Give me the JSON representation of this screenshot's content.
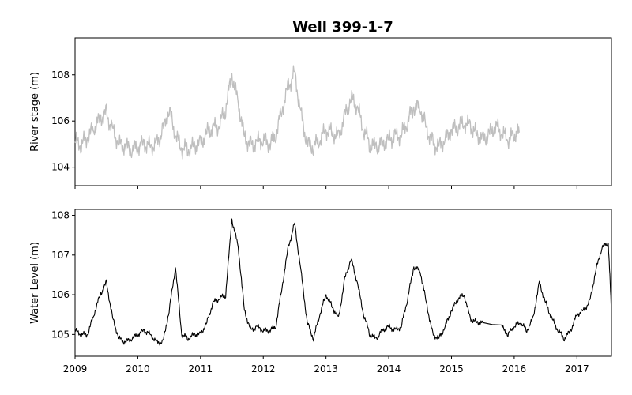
{
  "chart_data": [
    {
      "type": "line",
      "title": "Well 399-1-7",
      "xlabel": "",
      "ylabel": "River stage (m)",
      "xlim": [
        2009.0,
        2017.55
      ],
      "ylim": [
        103.2,
        109.6
      ],
      "yticks": [
        104,
        106,
        108
      ],
      "xticks": [
        2009,
        2010,
        2011,
        2012,
        2013,
        2014,
        2015,
        2016,
        2017
      ],
      "show_xtick_labels": false,
      "grid": false,
      "series": [
        {
          "color": "#bfbfbf",
          "x": [
            2009.0,
            2009.1,
            2009.2,
            2009.3,
            2009.4,
            2009.5,
            2009.6,
            2009.7,
            2009.8,
            2009.9,
            2010.0,
            2010.1,
            2010.2,
            2010.3,
            2010.4,
            2010.5,
            2010.6,
            2010.7,
            2010.8,
            2010.9,
            2011.0,
            2011.1,
            2011.2,
            2011.3,
            2011.4,
            2011.5,
            2011.6,
            2011.7,
            2011.8,
            2011.9,
            2012.0,
            2012.1,
            2012.2,
            2012.3,
            2012.4,
            2012.5,
            2012.6,
            2012.7,
            2012.8,
            2012.9,
            2013.0,
            2013.1,
            2013.2,
            2013.3,
            2013.4,
            2013.5,
            2013.6,
            2013.7,
            2013.8,
            2013.9,
            2014.0,
            2014.1,
            2014.2,
            2014.3,
            2014.4,
            2014.5,
            2014.6,
            2014.7,
            2014.8,
            2014.9,
            2015.0,
            2015.1,
            2015.2,
            2015.3,
            2015.4,
            2015.5,
            2015.6,
            2015.7,
            2015.8,
            2015.9,
            2016.0,
            2016.08
          ],
          "y": [
            105.1,
            105.0,
            105.3,
            105.7,
            106.1,
            106.3,
            105.6,
            105.0,
            104.9,
            104.8,
            104.9,
            105.0,
            104.9,
            105.0,
            105.6,
            106.5,
            105.4,
            104.8,
            104.8,
            104.9,
            105.0,
            105.5,
            105.7,
            105.8,
            106.6,
            108.0,
            106.8,
            105.3,
            104.9,
            105.1,
            105.2,
            105.0,
            105.4,
            106.5,
            107.5,
            108.1,
            106.3,
            105.0,
            104.9,
            105.2,
            105.6,
            105.5,
            105.3,
            106.2,
            107.0,
            106.6,
            105.6,
            105.0,
            104.9,
            105.0,
            105.2,
            105.3,
            105.4,
            106.0,
            106.6,
            106.6,
            105.7,
            105.0,
            104.9,
            105.2,
            105.6,
            105.8,
            105.9,
            105.8,
            105.4,
            105.2,
            105.4,
            105.8,
            105.5,
            105.2,
            105.4,
            105.5
          ]
        }
      ]
    },
    {
      "type": "line",
      "title": "",
      "xlabel": "",
      "ylabel": "Water Level (m)",
      "xlim": [
        2009.0,
        2017.55
      ],
      "ylim": [
        104.45,
        108.15
      ],
      "yticks": [
        105,
        106,
        107,
        108
      ],
      "xticks": [
        2009,
        2010,
        2011,
        2012,
        2013,
        2014,
        2015,
        2016,
        2017
      ],
      "xtick_labels": [
        "2009",
        "2010",
        "2011",
        "2012",
        "2013",
        "2014",
        "2015",
        "2016",
        "2017"
      ],
      "show_xtick_labels": true,
      "grid": false,
      "series": [
        {
          "color": "#000000",
          "x": [
            2009.0,
            2009.1,
            2009.2,
            2009.3,
            2009.4,
            2009.5,
            2009.6,
            2009.7,
            2009.8,
            2009.9,
            2010.0,
            2010.1,
            2010.2,
            2010.3,
            2010.4,
            2010.5,
            2010.6,
            2010.7,
            2010.8,
            2010.9,
            2011.0,
            2011.1,
            2011.2,
            2011.3,
            2011.4,
            2011.5,
            2011.6,
            2011.7,
            2011.8,
            2011.9,
            2012.0,
            2012.1,
            2012.2,
            2012.3,
            2012.4,
            2012.5,
            2012.6,
            2012.7,
            2012.8,
            2012.9,
            2013.0,
            2013.1,
            2013.2,
            2013.3,
            2013.4,
            2013.5,
            2013.6,
            2013.7,
            2013.8,
            2013.9,
            2014.0,
            2014.1,
            2014.2,
            2014.3,
            2014.4,
            2014.5,
            2014.6,
            2014.7,
            2014.8,
            2014.9,
            2015.0,
            2015.1,
            2015.2,
            2015.3,
            2015.4,
            2015.5,
            2015.8,
            2015.9,
            2016.0,
            2016.1,
            2016.2,
            2016.3,
            2016.4,
            2016.5,
            2016.6,
            2016.7,
            2016.8,
            2016.9,
            2017.0,
            2017.1,
            2017.2,
            2017.3,
            2017.4,
            2017.5,
            2017.55
          ],
          "y": [
            105.1,
            105.0,
            105.0,
            105.5,
            106.0,
            106.3,
            105.4,
            104.9,
            104.8,
            104.9,
            105.0,
            105.1,
            105.0,
            104.8,
            104.8,
            105.6,
            106.7,
            105.0,
            104.9,
            105.0,
            105.0,
            105.3,
            105.8,
            105.9,
            106.0,
            107.9,
            107.2,
            105.6,
            105.1,
            105.2,
            105.1,
            105.1,
            105.2,
            106.2,
            107.2,
            107.8,
            106.6,
            105.3,
            104.9,
            105.5,
            106.0,
            105.7,
            105.4,
            106.4,
            106.9,
            106.3,
            105.5,
            105.0,
            104.9,
            105.1,
            105.2,
            105.1,
            105.2,
            105.9,
            106.7,
            106.6,
            105.8,
            105.0,
            104.9,
            105.2,
            105.6,
            105.9,
            106.0,
            105.4,
            105.3,
            105.3,
            105.2,
            105.0,
            105.2,
            105.3,
            105.1,
            105.4,
            106.3,
            105.8,
            105.4,
            105.1,
            104.9,
            105.1,
            105.5,
            105.6,
            105.8,
            106.6,
            107.2,
            107.3,
            105.6
          ]
        }
      ]
    }
  ]
}
